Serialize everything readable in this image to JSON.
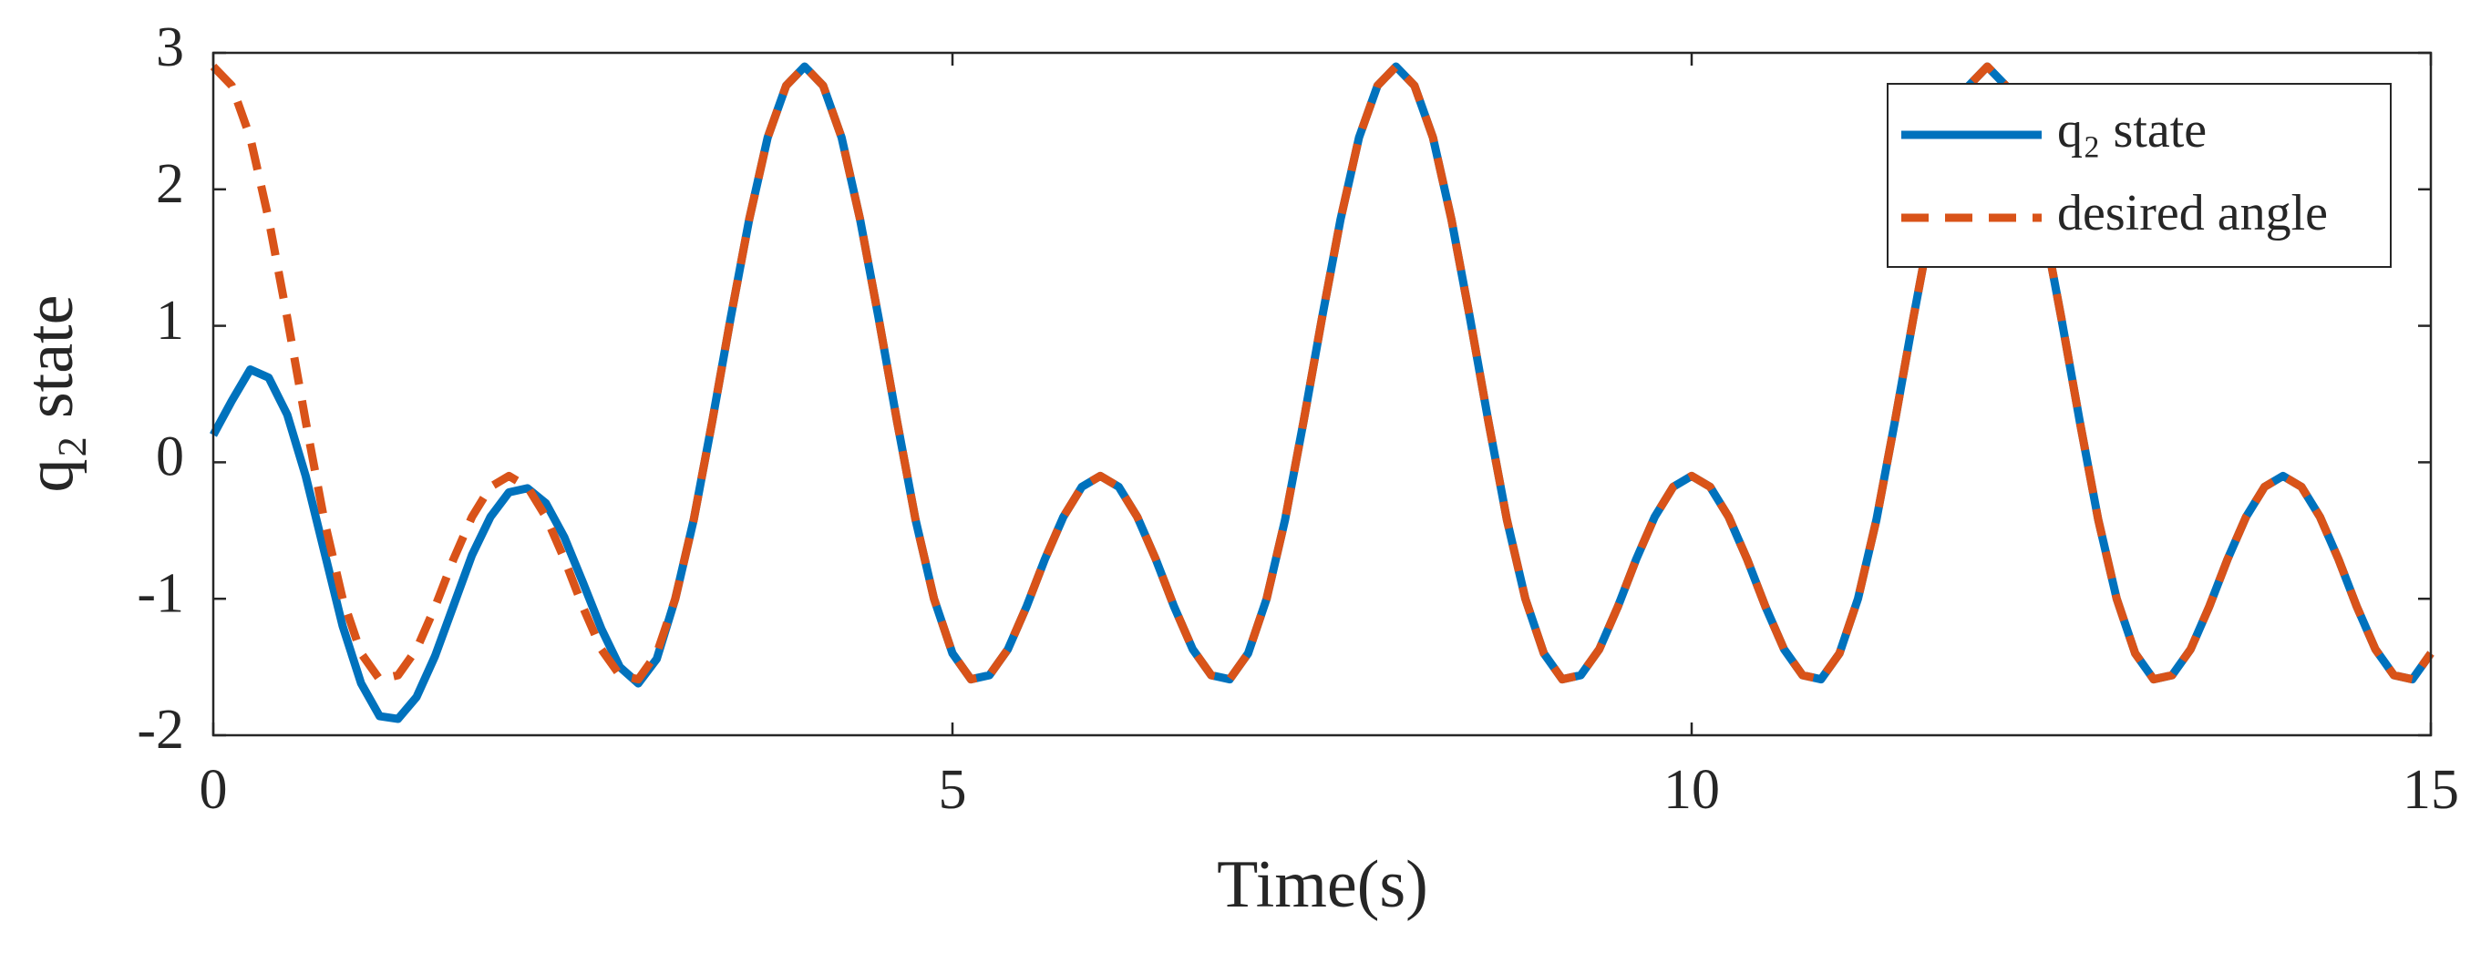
{
  "chart_data": {
    "type": "line",
    "xlabel": "Time(s)",
    "ylabel": "q₂ state",
    "xlim": [
      0,
      15
    ],
    "xticks": [
      0,
      5,
      10,
      15
    ],
    "ylim": [
      -2,
      3
    ],
    "yticks": [
      -2,
      -1,
      0,
      1,
      2,
      3
    ],
    "grid": false,
    "legend": "northeast",
    "x": [
      0,
      0.125,
      0.25,
      0.375,
      0.5,
      0.625,
      0.75,
      0.875,
      1,
      1.125,
      1.25,
      1.375,
      1.5,
      1.625,
      1.75,
      1.875,
      2,
      2.125,
      2.25,
      2.375,
      2.5,
      2.625,
      2.75,
      2.875,
      3,
      3.125,
      3.25,
      3.375,
      3.5,
      3.625,
      3.75,
      3.875,
      4,
      4.125,
      4.25,
      4.375,
      4.5,
      4.625,
      4.75,
      4.875,
      5,
      5.125,
      5.25,
      5.375,
      5.5,
      5.625,
      5.75,
      5.875,
      6,
      6.125,
      6.25,
      6.375,
      6.5,
      6.625,
      6.75,
      6.875,
      7,
      7.125,
      7.25,
      7.375,
      7.5,
      7.625,
      7.75,
      7.875,
      8,
      8.125,
      8.25,
      8.375,
      8.5,
      8.625,
      8.75,
      8.875,
      9,
      9.125,
      9.25,
      9.375,
      9.5,
      9.625,
      9.75,
      9.875,
      10,
      10.125,
      10.25,
      10.375,
      10.5,
      10.625,
      10.75,
      10.875,
      11,
      11.125,
      11.25,
      11.375,
      11.5,
      11.625,
      11.75,
      11.875,
      12,
      12.125,
      12.25,
      12.375,
      12.5,
      12.625,
      12.75,
      12.875,
      13,
      13.125,
      13.25,
      13.375,
      13.5,
      13.625,
      13.75,
      13.875,
      14,
      14.125,
      14.25,
      14.375,
      14.5,
      14.625,
      14.75,
      14.875,
      15
    ],
    "series": [
      {
        "name": "q₂ state",
        "color": "#0072BD",
        "dashed": false,
        "values": [
          0.2,
          0.45,
          0.68,
          0.62,
          0.35,
          -0.1,
          -0.65,
          -1.2,
          -1.62,
          -1.86,
          -1.88,
          -1.72,
          -1.42,
          -1.05,
          -0.68,
          -0.4,
          -0.22,
          -0.19,
          -0.3,
          -0.55,
          -0.88,
          -1.22,
          -1.5,
          -1.62,
          -1.44,
          -1,
          -0.42,
          0.3,
          1.06,
          1.78,
          2.38,
          2.76,
          2.9,
          2.76,
          2.38,
          1.78,
          1.06,
          0.3,
          -0.42,
          -1,
          -1.4,
          -1.59,
          -1.56,
          -1.37,
          -1.06,
          -0.71,
          -0.4,
          -0.18,
          -0.1,
          -0.18,
          -0.4,
          -0.71,
          -1.06,
          -1.37,
          -1.56,
          -1.59,
          -1.4,
          -1,
          -0.42,
          0.3,
          1.06,
          1.78,
          2.38,
          2.76,
          2.9,
          2.76,
          2.38,
          1.78,
          1.06,
          0.3,
          -0.42,
          -1,
          -1.4,
          -1.59,
          -1.56,
          -1.37,
          -1.06,
          -0.71,
          -0.4,
          -0.18,
          -0.1,
          -0.18,
          -0.4,
          -0.71,
          -1.06,
          -1.37,
          -1.56,
          -1.59,
          -1.4,
          -1,
          -0.42,
          0.3,
          1.06,
          1.78,
          2.38,
          2.76,
          2.9,
          2.76,
          2.38,
          1.78,
          1.06,
          0.3,
          -0.42,
          -1,
          -1.4,
          -1.59,
          -1.56,
          -1.37,
          -1.06,
          -0.71,
          -0.4,
          -0.18,
          -0.1,
          -0.18,
          -0.4,
          -0.71,
          -1.06,
          -1.37,
          -1.56,
          -1.59,
          -1.4
        ]
      },
      {
        "name": "desired angle",
        "color": "#D95319",
        "dashed": true,
        "values": [
          2.9,
          2.76,
          2.38,
          1.78,
          1.06,
          0.3,
          -0.42,
          -1,
          -1.4,
          -1.59,
          -1.56,
          -1.37,
          -1.06,
          -0.71,
          -0.4,
          -0.18,
          -0.1,
          -0.18,
          -0.4,
          -0.71,
          -1.06,
          -1.37,
          -1.56,
          -1.59,
          -1.4,
          -1,
          -0.42,
          0.3,
          1.06,
          1.78,
          2.38,
          2.76,
          2.9,
          2.76,
          2.38,
          1.78,
          1.06,
          0.3,
          -0.42,
          -1,
          -1.4,
          -1.59,
          -1.56,
          -1.37,
          -1.06,
          -0.71,
          -0.4,
          -0.18,
          -0.1,
          -0.18,
          -0.4,
          -0.71,
          -1.06,
          -1.37,
          -1.56,
          -1.59,
          -1.4,
          -1,
          -0.42,
          0.3,
          1.06,
          1.78,
          2.38,
          2.76,
          2.9,
          2.76,
          2.38,
          1.78,
          1.06,
          0.3,
          -0.42,
          -1,
          -1.4,
          -1.59,
          -1.56,
          -1.37,
          -1.06,
          -0.71,
          -0.4,
          -0.18,
          -0.1,
          -0.18,
          -0.4,
          -0.71,
          -1.06,
          -1.37,
          -1.56,
          -1.59,
          -1.4,
          -1,
          -0.42,
          0.3,
          1.06,
          1.78,
          2.38,
          2.76,
          2.9,
          2.76,
          2.38,
          1.78,
          1.06,
          0.3,
          -0.42,
          -1,
          -1.4,
          -1.59,
          -1.56,
          -1.37,
          -1.06,
          -0.71,
          -0.4,
          -0.18,
          -0.1,
          -0.18,
          -0.4,
          -0.71,
          -1.06,
          -1.37,
          -1.56,
          -1.59,
          -1.4
        ]
      }
    ]
  }
}
